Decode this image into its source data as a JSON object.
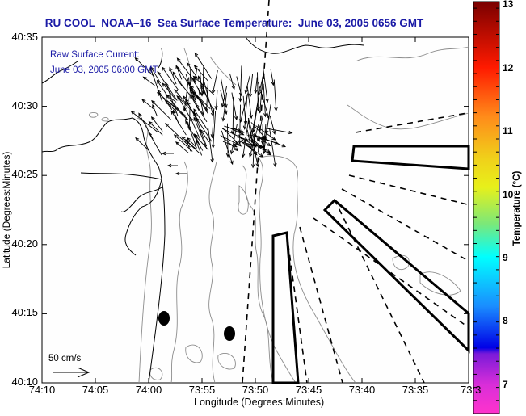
{
  "title": "RU COOL  NOAA–16  Sea Surface Temperature:  June 03, 2005 0656 GMT",
  "legend": {
    "line1": "Raw Surface Current:",
    "line2": "June 03, 2005 06:00 GMT",
    "scale_label": "50 cm/s"
  },
  "axes": {
    "x_title": "Longitude (Degrees:Minutes)",
    "y_title": "Latitude (Degrees:Minutes)",
    "x_ticks": [
      "74:10",
      "74:05",
      "74:00",
      "73:55",
      "73:50",
      "73:45",
      "73:40",
      "73:35",
      "73:3"
    ],
    "y_ticks": [
      "40:35",
      "40:30",
      "40:25",
      "40:20",
      "40:15",
      "40:10"
    ]
  },
  "colorbar": {
    "title": "Temperature (°C)",
    "ticks": [
      "13",
      "12",
      "11",
      "10",
      "9",
      "8",
      "7"
    ],
    "range": [
      6.7,
      13
    ],
    "colors": [
      "#7a0000",
      "#ff1a00",
      "#ff8c1a",
      "#e8e81a",
      "#7ae87a",
      "#00ffff",
      "#1a8cff",
      "#0000e6",
      "#8a1ad9",
      "#ff33cc"
    ]
  },
  "colors": {
    "title_blue": "#1a1aa6",
    "coastline": "#000000",
    "bathymetry": "#8c8c8c"
  },
  "markers": {
    "stations": 2
  }
}
